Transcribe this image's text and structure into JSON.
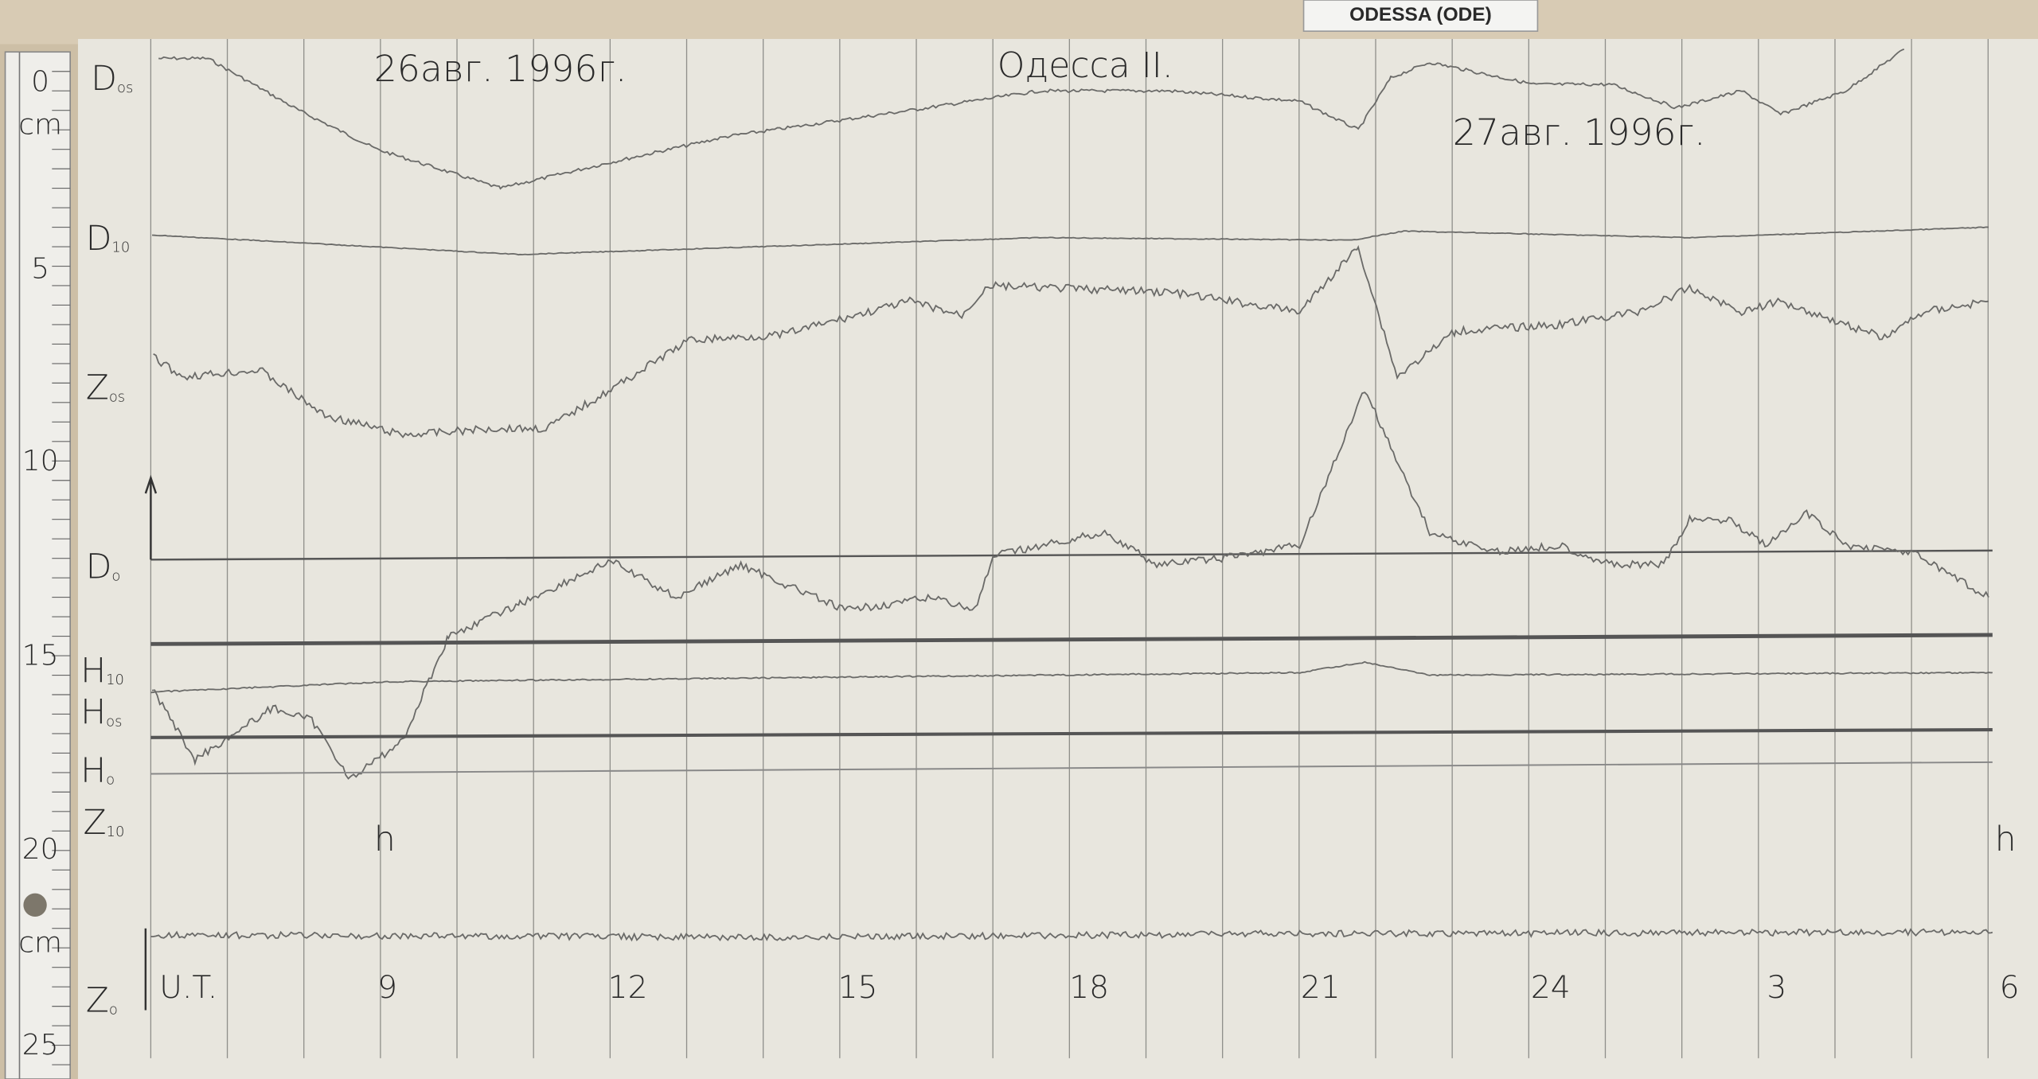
{
  "header": {
    "label": "ODESSA (ODE)",
    "date_left": "26авг. 1996г.",
    "station": "Одесса II.",
    "date_right": "27авг. 1996г."
  },
  "ruler": {
    "labels": [
      "0",
      "cm",
      "5",
      "10",
      "15",
      "20",
      "cm",
      "25"
    ]
  },
  "traces": [
    {
      "letter": "D",
      "sub": "os"
    },
    {
      "letter": "D",
      "sub": "10"
    },
    {
      "letter": "Z",
      "sub": "os"
    },
    {
      "letter": "D",
      "sub": "o"
    },
    {
      "letter": "H",
      "sub": "10"
    },
    {
      "letter": "H",
      "sub": "os"
    },
    {
      "letter": "H",
      "sub": "o"
    },
    {
      "letter": "Z",
      "sub": "10"
    },
    {
      "letter": "Z",
      "sub": "o"
    }
  ],
  "time_axis": {
    "labels": [
      "U.T.",
      "9",
      "12",
      "15",
      "18",
      "21",
      "24",
      "3",
      "6"
    ],
    "unit_left": "h",
    "unit_right": "h"
  }
}
